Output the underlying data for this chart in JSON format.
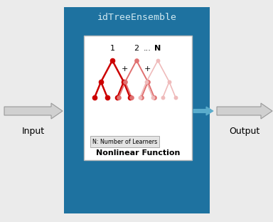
{
  "bg_color": "#EBEBEB",
  "blue_box_color": "#1E72A0",
  "title": "idTreeEnsemble",
  "title_color": "#D0E8F0",
  "title_fontsize": 9.5,
  "title_font": "monospace",
  "inner_box_color": "#FFFFFF",
  "inner_box_edge_color": "#BBBBBB",
  "tree1_color": "#CC0000",
  "tree2_color": "#E07070",
  "tree3_color": "#EFBBBB",
  "label_bottom": "N: Number of Learners",
  "label_bottom2": "Nonlinear Function",
  "input_label": "Input",
  "output_label": "Output",
  "arrow_color_side": "#D0D0D0",
  "arrow_edge_color": "#999999",
  "arrow_color_inner": "#5AACCC",
  "figsize": [
    3.84,
    3.12
  ],
  "dpi": 100
}
